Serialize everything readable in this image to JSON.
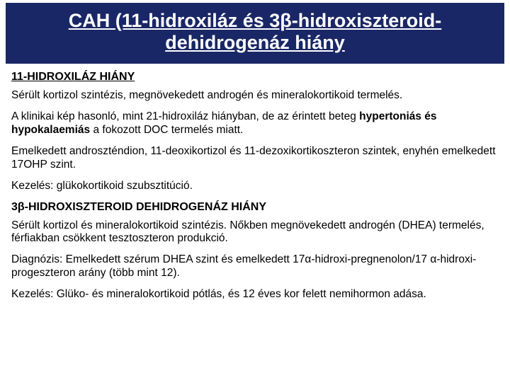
{
  "colors": {
    "title_bg": "#1a2766",
    "title_text": "#ffffff",
    "body_bg": "#ffffff",
    "body_text": "#000000"
  },
  "title": "CAH (11-hidroxiláz és 3β-hidroxiszteroid-dehidrogenáz hiány",
  "section1_heading": "11-HIDROXILÁZ HIÁNY",
  "p1": "Sérült kortizol szintézis, megnövekedett androgén és mineralokortikoid termelés.",
  "p2a": "A klinikai kép hasonló, mint 21-hidroxiláz hiányban, de az érintett beteg ",
  "p2b": "hypertoniás és hypokalaemiás",
  "p2c": " a fokozott DOC termelés miatt.",
  "p3": "Emelkedett androszténdion, 11-deoxikortizol és 11-dezoxikortikoszteron szintek, enyhén emelkedett 17OHP szint.",
  "p4": "Kezelés:  glükokortikoid szubsztitúció.",
  "section2_heading": "3β-HIDROXISZTEROID DEHIDROGENÁZ HIÁNY",
  "p5": "Sérült kortizol és mineralokortikoid szintézis. Nőkben megnövekedett androgén (DHEA) termelés, férfiakban csökkent tesztoszteron produkció.",
  "p6": "Diagnózis: Emelkedett szérum DHEA szint és emelkedett 17α-hidroxi-pregnenolon/17 α-hidroxi-progeszteron arány (több mint 12).",
  "p7": "Kezelés: Glüko- és mineralokortikoid pótlás, és 12 éves kor felett nemihormon adása."
}
